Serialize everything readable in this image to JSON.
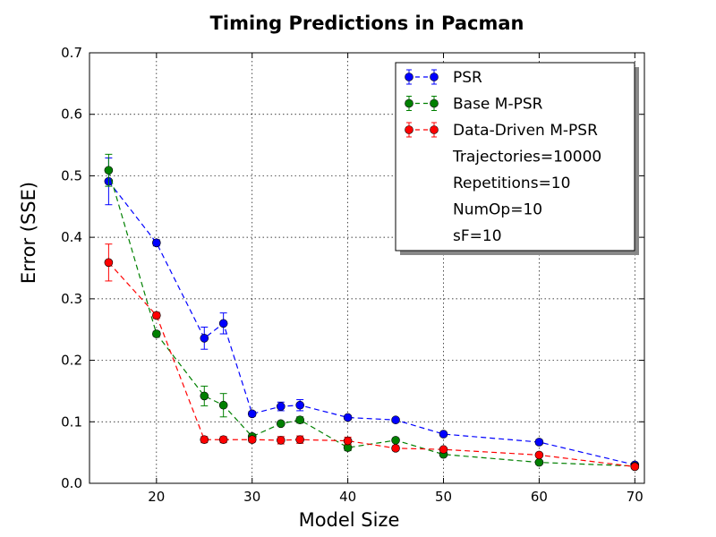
{
  "chart_data": {
    "type": "line",
    "title": "Timing Predictions in Pacman",
    "xlabel": "Model Size",
    "ylabel": "Error (SSE)",
    "xlim": [
      13,
      71
    ],
    "ylim": [
      0.0,
      0.7
    ],
    "xticks": [
      "20",
      "30",
      "40",
      "50",
      "60",
      "70"
    ],
    "yticks": [
      "0.0",
      "0.1",
      "0.2",
      "0.3",
      "0.4",
      "0.5",
      "0.6",
      "0.7"
    ],
    "grid": true,
    "legend_position": "top-right",
    "series": [
      {
        "name": "PSR",
        "color": "#0000ff",
        "marker": "circle",
        "linestyle": "dashed",
        "x": [
          15,
          20,
          25,
          27,
          30,
          33,
          35,
          40,
          45,
          50,
          60,
          70
        ],
        "y": [
          0.491,
          0.391,
          0.236,
          0.26,
          0.113,
          0.125,
          0.127,
          0.107,
          0.103,
          0.08,
          0.067,
          0.03
        ],
        "err": [
          0.038,
          0.005,
          0.018,
          0.017,
          0.004,
          0.007,
          0.009,
          0.003,
          0.003,
          0.003,
          0.004,
          0.002
        ]
      },
      {
        "name": "Base M-PSR",
        "color": "#008000",
        "marker": "circle",
        "linestyle": "dashed",
        "x": [
          15,
          20,
          25,
          27,
          30,
          33,
          35,
          40,
          45,
          50,
          60,
          70
        ],
        "y": [
          0.509,
          0.243,
          0.142,
          0.127,
          0.076,
          0.097,
          0.103,
          0.058,
          0.07,
          0.047,
          0.034,
          0.028
        ],
        "err": [
          0.026,
          0.004,
          0.016,
          0.019,
          0.004,
          0.003,
          0.005,
          0.005,
          0.003,
          0.003,
          0.003,
          0.002
        ]
      },
      {
        "name": "Data-Driven M-PSR",
        "color": "#ff0000",
        "marker": "circle",
        "linestyle": "dashed",
        "x": [
          15,
          20,
          25,
          27,
          30,
          33,
          35,
          40,
          45,
          50,
          60,
          70
        ],
        "y": [
          0.359,
          0.273,
          0.071,
          0.071,
          0.071,
          0.07,
          0.071,
          0.069,
          0.057,
          0.055,
          0.046,
          0.027
        ],
        "err": [
          0.03,
          0.005,
          0.005,
          0.005,
          0.004,
          0.006,
          0.006,
          0.006,
          0.004,
          0.003,
          0.003,
          0.002
        ]
      }
    ],
    "annotations": [
      "Trajectories=10000",
      "Repetitions=10",
      "NumOp=10",
      "sF=10"
    ]
  }
}
